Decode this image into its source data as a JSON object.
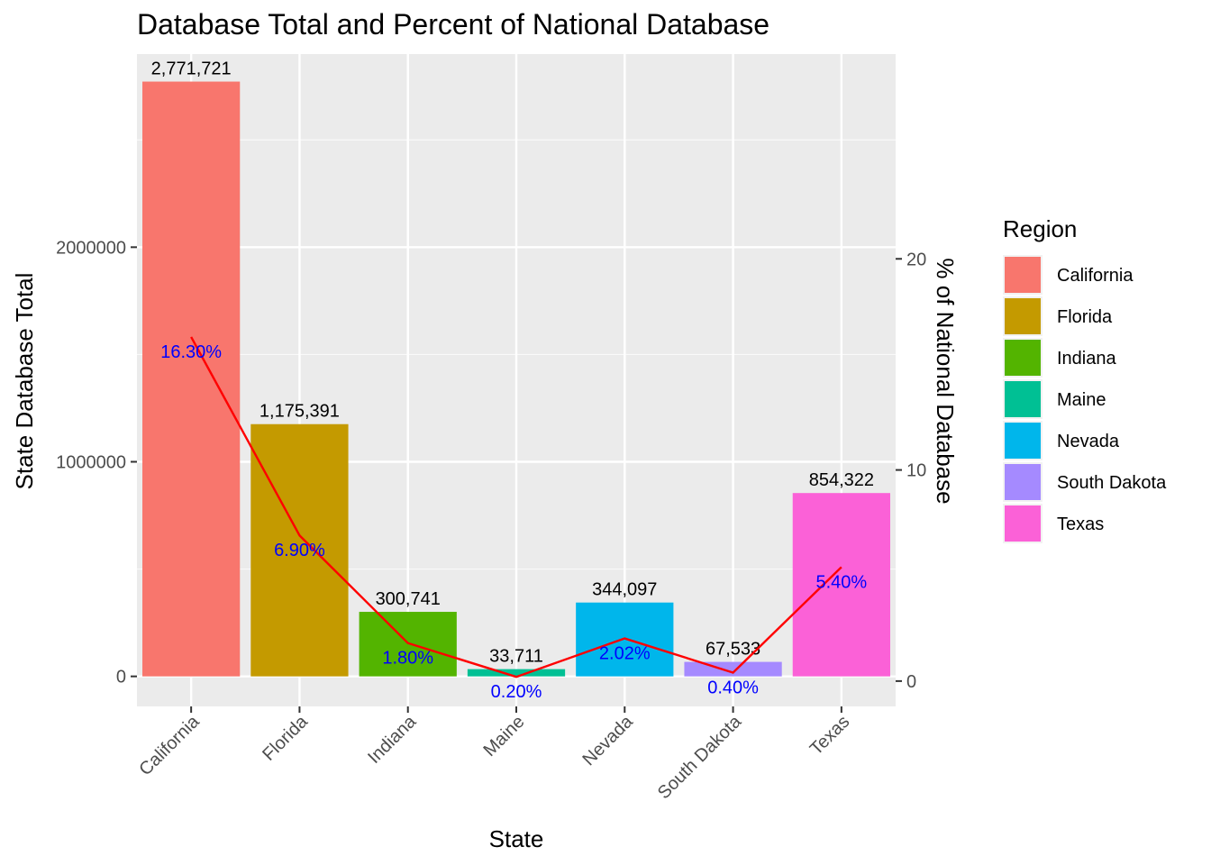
{
  "chart_data": {
    "type": "bar",
    "title": "Database Total and Percent of National Database",
    "xlabel": "State",
    "ylabel": "State Database Total",
    "y2label": "% of National Database",
    "categories": [
      "California",
      "Florida",
      "Indiana",
      "Maine",
      "Nevada",
      "South Dakota",
      "Texas"
    ],
    "values": [
      2771721,
      1175391,
      300741,
      33711,
      344097,
      67533,
      854322
    ],
    "value_labels": [
      "2,771,721",
      "1,175,391",
      "300,741",
      "33,711",
      "344,097",
      "67,533",
      "854,322"
    ],
    "percent_series": {
      "values": [
        16.3,
        6.9,
        1.8,
        0.2,
        2.02,
        0.4,
        5.4
      ],
      "labels": [
        "16.30%",
        "6.90%",
        "1.80%",
        "0.20%",
        "2.02%",
        "0.40%",
        "5.40%"
      ],
      "color": "#ff0000",
      "label_color": "#0000ff"
    },
    "ylim": [
      -140000,
      2900000
    ],
    "yticks": [
      0,
      1000000,
      2000000
    ],
    "ytick_labels": [
      "0",
      "1000000",
      "2000000"
    ],
    "y2lim": [
      -1.2,
      29.7
    ],
    "y2ticks": [
      0,
      10,
      20
    ],
    "y2tick_labels": [
      "0",
      "10",
      "20"
    ],
    "grid": true,
    "legend": {
      "title": "Region",
      "position": "right",
      "entries": [
        "California",
        "Florida",
        "Indiana",
        "Maine",
        "Nevada",
        "South Dakota",
        "Texas"
      ]
    },
    "colors": [
      "#F8766D",
      "#C49A00",
      "#53B400",
      "#00C094",
      "#00B6EB",
      "#A58AFF",
      "#FB61D7"
    ]
  }
}
